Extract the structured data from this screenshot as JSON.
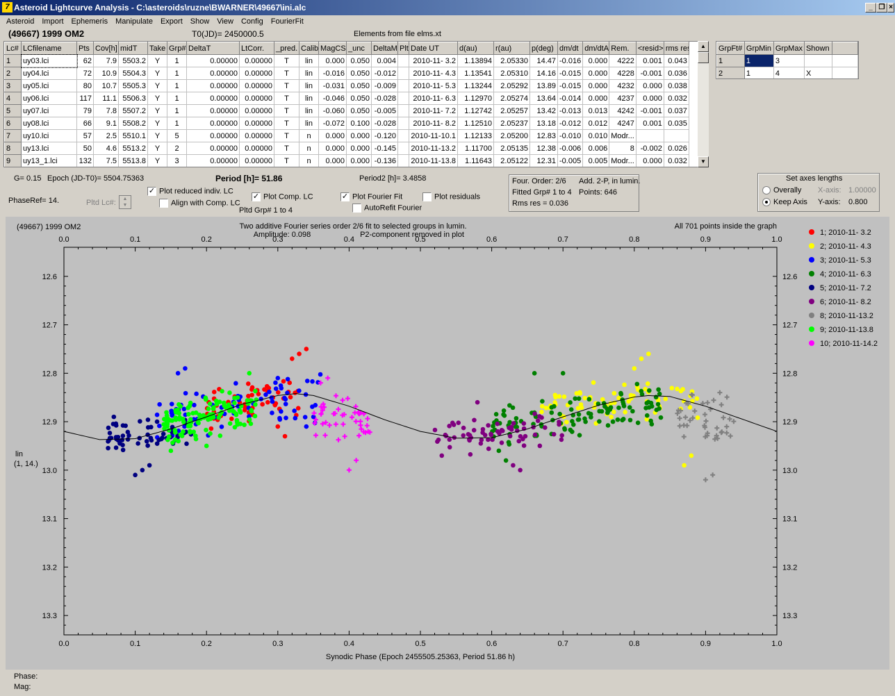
{
  "window": {
    "title": "Asteroid Lightcurve Analysis - C:\\asteroids\\ruzne\\BWARNER\\49667\\ini.alc",
    "min": "_",
    "max": "❐",
    "close": "×"
  },
  "menu": [
    "Asteroid",
    "Import",
    "Ephemeris",
    "Manipulate",
    "Export",
    "Show",
    "View",
    "Config",
    "FourierFit"
  ],
  "header": {
    "object": "(49667) 1999 OM2",
    "t0": "T0(JD)= 2450000.5",
    "elements": "Elements from file elms.xt"
  },
  "lctable": {
    "columns": [
      "Lc#",
      "LCfilename",
      "Pts",
      "Cov[h]",
      "midT",
      "Take",
      "Grp#",
      "DeltaT",
      "LtCorr.",
      "_pred.",
      "Calib.",
      "MagCS",
      "_unc",
      "DeltaM",
      "Plt",
      "Date UT",
      "d(au)",
      "r(au)",
      "p(deg)",
      "dm/dt",
      "dm/dtA",
      "Rem.",
      "<resid>",
      "rms res"
    ],
    "rows": [
      [
        "1",
        "uy03.lci",
        "62",
        "7.9",
        "5503.2",
        "Y",
        "1",
        "0.00000",
        "0.00000",
        "T",
        "lin",
        "0.000",
        "0.050",
        "0.004",
        "",
        "2010-11- 3.2",
        "1.13894",
        "2.05330",
        "14.47",
        "-0.016",
        "0.000",
        "4222",
        "0.001",
        "0.043"
      ],
      [
        "2",
        "uy04.lci",
        "72",
        "10.9",
        "5504.3",
        "Y",
        "1",
        "0.00000",
        "0.00000",
        "T",
        "lin",
        "-0.016",
        "0.050",
        "-0.012",
        "",
        "2010-11- 4.3",
        "1.13541",
        "2.05310",
        "14.16",
        "-0.015",
        "0.000",
        "4228",
        "-0.001",
        "0.036"
      ],
      [
        "3",
        "uy05.lci",
        "80",
        "10.7",
        "5505.3",
        "Y",
        "1",
        "0.00000",
        "0.00000",
        "T",
        "lin",
        "-0.031",
        "0.050",
        "-0.009",
        "",
        "2010-11- 5.3",
        "1.13244",
        "2.05292",
        "13.89",
        "-0.015",
        "0.000",
        "4232",
        "0.000",
        "0.038"
      ],
      [
        "4",
        "uy06.lci",
        "117",
        "11.1",
        "5506.3",
        "Y",
        "1",
        "0.00000",
        "0.00000",
        "T",
        "lin",
        "-0.046",
        "0.050",
        "-0.028",
        "",
        "2010-11- 6.3",
        "1.12970",
        "2.05274",
        "13.64",
        "-0.014",
        "0.000",
        "4237",
        "0.000",
        "0.032"
      ],
      [
        "5",
        "uy07.lci",
        "79",
        "7.8",
        "5507.2",
        "Y",
        "1",
        "0.00000",
        "0.00000",
        "T",
        "lin",
        "-0.060",
        "0.050",
        "-0.005",
        "",
        "2010-11- 7.2",
        "1.12742",
        "2.05257",
        "13.42",
        "-0.013",
        "0.013",
        "4242",
        "-0.001",
        "0.037"
      ],
      [
        "6",
        "uy08.lci",
        "66",
        "9.1",
        "5508.2",
        "Y",
        "1",
        "0.00000",
        "0.00000",
        "T",
        "lin",
        "-0.072",
        "0.100",
        "-0.028",
        "",
        "2010-11- 8.2",
        "1.12510",
        "2.05237",
        "13.18",
        "-0.012",
        "0.012",
        "4247",
        "0.001",
        "0.035"
      ],
      [
        "7",
        "uy10.lci",
        "57",
        "2.5",
        "5510.1",
        "Y",
        "5",
        "0.00000",
        "0.00000",
        "T",
        "n",
        "0.000",
        "0.000",
        "-0.120",
        "",
        "2010-11-10.1",
        "1.12133",
        "2.05200",
        "12.83",
        "-0.010",
        "0.010",
        "Modr...",
        "",
        ""
      ],
      [
        "8",
        "uy13.lci",
        "50",
        "4.6",
        "5513.2",
        "Y",
        "2",
        "0.00000",
        "0.00000",
        "T",
        "n",
        "0.000",
        "0.000",
        "-0.145",
        "",
        "2010-11-13.2",
        "1.11700",
        "2.05135",
        "12.38",
        "-0.006",
        "0.006",
        "8",
        "-0.002",
        "0.026"
      ],
      [
        "9",
        "uy13_1.lci",
        "132",
        "7.5",
        "5513.8",
        "Y",
        "3",
        "0.00000",
        "0.00000",
        "T",
        "n",
        "0.000",
        "0.000",
        "-0.136",
        "",
        "2010-11-13.8",
        "1.11643",
        "2.05122",
        "12.31",
        "-0.005",
        "0.005",
        "Modr...",
        "0.000",
        "0.032"
      ]
    ]
  },
  "grptable": {
    "columns": [
      "GrpFt#",
      "GrpMin",
      "GrpMax",
      "Shown"
    ],
    "rows": [
      [
        "1",
        "1",
        "3",
        ""
      ],
      [
        "2",
        "1",
        "4",
        "X"
      ]
    ]
  },
  "controls": {
    "g": "G= 0.15",
    "epoch": "Epoch (JD-T0)= 5504.75363",
    "period": "Period [h]= 51.86",
    "period2": "Period2 [h]= 3.4858",
    "phaseref": "PhaseRef= 14.",
    "pltdlc": "Pltd Lc#:",
    "pltdgrp": "Pltd Grp#  1   to   4",
    "cb_reduced": "Plot reduced indiv. LC",
    "cb_align": "Align with Comp. LC",
    "cb_comp": "Plot Comp. LC",
    "cb_fourier": "Plot Fourier Fit",
    "cb_autorefit": "AutoRefit Fourier",
    "cb_residuals": "Plot residuals",
    "info1": "Four. Order:  2/6",
    "info2": "Add. 2-P, in lumin.",
    "info3": "Fitted Grp# 1 to 4",
    "info4": "Points: 646",
    "info5": "Rms res     = 0.036",
    "axes_title": "Set axes lengths",
    "overally": "Overally",
    "keepaxis": "Keep Axis",
    "xaxis_lbl": "X-axis:",
    "xaxis_val": "1.00000",
    "yaxis_lbl": "Y-axis:",
    "yaxis_val": "0.800"
  },
  "chart_data": {
    "type": "scatter",
    "title": "(49667) 1999 OM2",
    "subtitle1": "Two additive Fourier series order 2/6 fit to selected groups in lumin.",
    "subtitle2": "Amplitude: 0.098",
    "subtitle3": "P2-component removed in plot",
    "note": "All 701 points inside the graph",
    "xlabel": "Synodic Phase (Epoch 2455505.25363, Period 51.86 h)",
    "ylabel1": "lin",
    "ylabel2": "(1, 14.)",
    "xlim": [
      0,
      1
    ],
    "ylim": [
      12.54,
      13.34
    ],
    "y_inverted": true,
    "xticks": [
      "0.0",
      "0.1",
      "0.2",
      "0.3",
      "0.4",
      "0.5",
      "0.6",
      "0.7",
      "0.8",
      "0.9",
      "1.0"
    ],
    "yticks": [
      "12.6",
      "12.7",
      "12.8",
      "12.9",
      "13.0",
      "13.1",
      "13.2",
      "13.3"
    ],
    "fit_curve": [
      [
        0,
        12.92
      ],
      [
        0.05,
        12.937
      ],
      [
        0.1,
        12.935
      ],
      [
        0.15,
        12.915
      ],
      [
        0.2,
        12.89
      ],
      [
        0.25,
        12.864
      ],
      [
        0.3,
        12.846
      ],
      [
        0.325,
        12.842
      ],
      [
        0.35,
        12.846
      ],
      [
        0.4,
        12.868
      ],
      [
        0.45,
        12.896
      ],
      [
        0.5,
        12.92
      ],
      [
        0.55,
        12.934
      ],
      [
        0.6,
        12.933
      ],
      [
        0.65,
        12.915
      ],
      [
        0.7,
        12.89
      ],
      [
        0.75,
        12.866
      ],
      [
        0.8,
        12.849
      ],
      [
        0.82,
        12.846
      ],
      [
        0.85,
        12.848
      ],
      [
        0.9,
        12.868
      ],
      [
        0.95,
        12.894
      ],
      [
        1,
        12.92
      ]
    ],
    "series": [
      {
        "name": "1; 2010-11- 3.2",
        "color": "#ff0000",
        "marker": "dot",
        "range": [
          0.2,
          0.33
        ],
        "ybase": 12.86,
        "spread": 0.045,
        "n": 60,
        "extra": [
          [
            0.32,
            12.77
          ],
          [
            0.33,
            12.76
          ],
          [
            0.34,
            12.75
          ],
          [
            0.3,
            12.91
          ],
          [
            0.31,
            12.93
          ]
        ]
      },
      {
        "name": "2; 2010-11- 4.3",
        "color": "#ffff00",
        "marker": "dot",
        "range": [
          0.67,
          0.89
        ],
        "ybase": 12.86,
        "spread": 0.05,
        "n": 70,
        "extra": [
          [
            0.8,
            12.79
          ],
          [
            0.81,
            12.77
          ],
          [
            0.82,
            12.76
          ],
          [
            0.87,
            12.99
          ],
          [
            0.88,
            12.97
          ]
        ]
      },
      {
        "name": "3; 2010-11- 5.3",
        "color": "#0000ff",
        "marker": "dot",
        "range": [
          0.13,
          0.36
        ],
        "ybase": 12.87,
        "spread": 0.06,
        "n": 75,
        "extra": [
          [
            0.16,
            12.8
          ],
          [
            0.17,
            12.79
          ],
          [
            0.3,
            12.81
          ],
          [
            0.35,
            12.89
          ],
          [
            0.34,
            12.91
          ]
        ]
      },
      {
        "name": "4; 2010-11- 6.3",
        "color": "#008000",
        "marker": "dot",
        "range": [
          0.6,
          0.84
        ],
        "ybase": 12.89,
        "spread": 0.05,
        "n": 110,
        "extra": [
          [
            0.66,
            12.8
          ],
          [
            0.7,
            12.8
          ],
          [
            0.61,
            12.96
          ],
          [
            0.62,
            12.98
          ]
        ]
      },
      {
        "name": "5; 2010-11- 7.2",
        "color": "#000080",
        "marker": "dot",
        "range": [
          0.06,
          0.18
        ],
        "ybase": 12.93,
        "spread": 0.04,
        "n": 60,
        "extra": [
          [
            0.1,
            13.01
          ],
          [
            0.11,
            13.0
          ],
          [
            0.12,
            12.99
          ],
          [
            0.07,
            12.89
          ]
        ]
      },
      {
        "name": "6; 2010-11- 8.2",
        "color": "#800080",
        "marker": "dot",
        "range": [
          0.52,
          0.7
        ],
        "ybase": 12.93,
        "spread": 0.04,
        "n": 65,
        "extra": [
          [
            0.58,
            12.86
          ],
          [
            0.63,
            12.99
          ],
          [
            0.64,
            13.0
          ],
          [
            0.53,
            12.97
          ]
        ]
      },
      {
        "name": "8; 2010-11-13.2",
        "color": "#808080",
        "marker": "cross",
        "range": [
          0.86,
          0.94
        ],
        "ybase": 12.93,
        "spread": 0.06,
        "n": 40,
        "extra": [
          [
            0.9,
            13.02
          ],
          [
            0.91,
            13.01
          ],
          [
            0.93,
            12.85
          ],
          [
            0.92,
            12.84
          ]
        ]
      },
      {
        "name": "9; 2010-11-13.8",
        "color": "#00ff00",
        "marker": "dot",
        "range": [
          0.14,
          0.27
        ],
        "ybase": 12.89,
        "spread": 0.05,
        "n": 120,
        "extra": [
          [
            0.15,
            12.96
          ],
          [
            0.2,
            12.95
          ],
          [
            0.26,
            12.8
          ]
        ]
      },
      {
        "name": "10; 2010-11-14.2",
        "color": "#ff00ff",
        "marker": "cross",
        "range": [
          0.35,
          0.43
        ],
        "ybase": 12.92,
        "spread": 0.05,
        "n": 45,
        "extra": [
          [
            0.36,
            12.82
          ],
          [
            0.37,
            12.81
          ],
          [
            0.4,
            13.0
          ],
          [
            0.41,
            12.98
          ]
        ]
      }
    ]
  },
  "status": {
    "phase": "Phase:",
    "mag": "Mag:"
  }
}
